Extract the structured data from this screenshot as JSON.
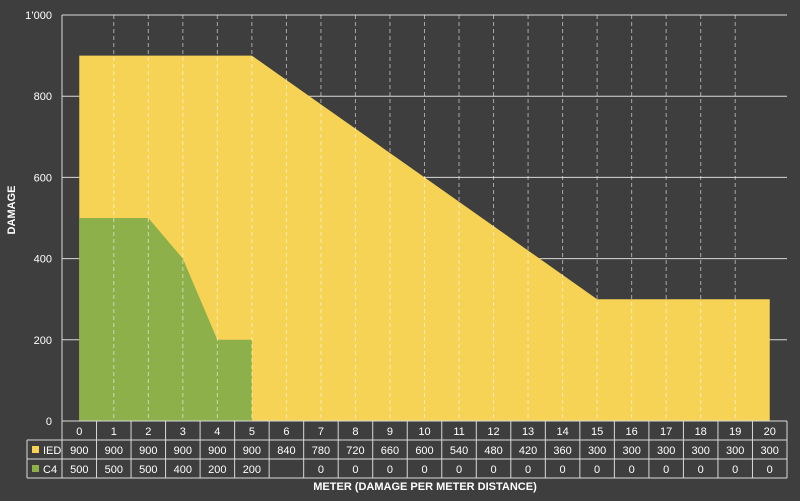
{
  "chart_data": {
    "type": "area",
    "x": [
      0,
      1,
      2,
      3,
      4,
      5,
      6,
      7,
      8,
      9,
      10,
      11,
      12,
      13,
      14,
      15,
      16,
      17,
      18,
      19,
      20
    ],
    "series": [
      {
        "name": "IED",
        "color": "#f6d354",
        "values": [
          900,
          900,
          900,
          900,
          900,
          900,
          840,
          780,
          720,
          660,
          600,
          540,
          480,
          420,
          360,
          300,
          300,
          300,
          300,
          300,
          300
        ]
      },
      {
        "name": "C4",
        "color": "#8db04a",
        "values": [
          500,
          500,
          500,
          400,
          200,
          200,
          null,
          0,
          0,
          0,
          0,
          0,
          0,
          0,
          0,
          0,
          0,
          0,
          0,
          0,
          0
        ]
      }
    ],
    "ylim": [
      0,
      1000
    ],
    "yticks": [
      "0",
      "200",
      "400",
      "600",
      "800",
      "1’000"
    ],
    "ytick_values": [
      0,
      200,
      400,
      600,
      800,
      1000
    ],
    "ylabel": "DAMAGE",
    "xlabel": "METER (DAMAGE PER METER DISTANCE)",
    "grid": true,
    "legend": "data-table below x axis",
    "background": "#3e3e3e"
  }
}
